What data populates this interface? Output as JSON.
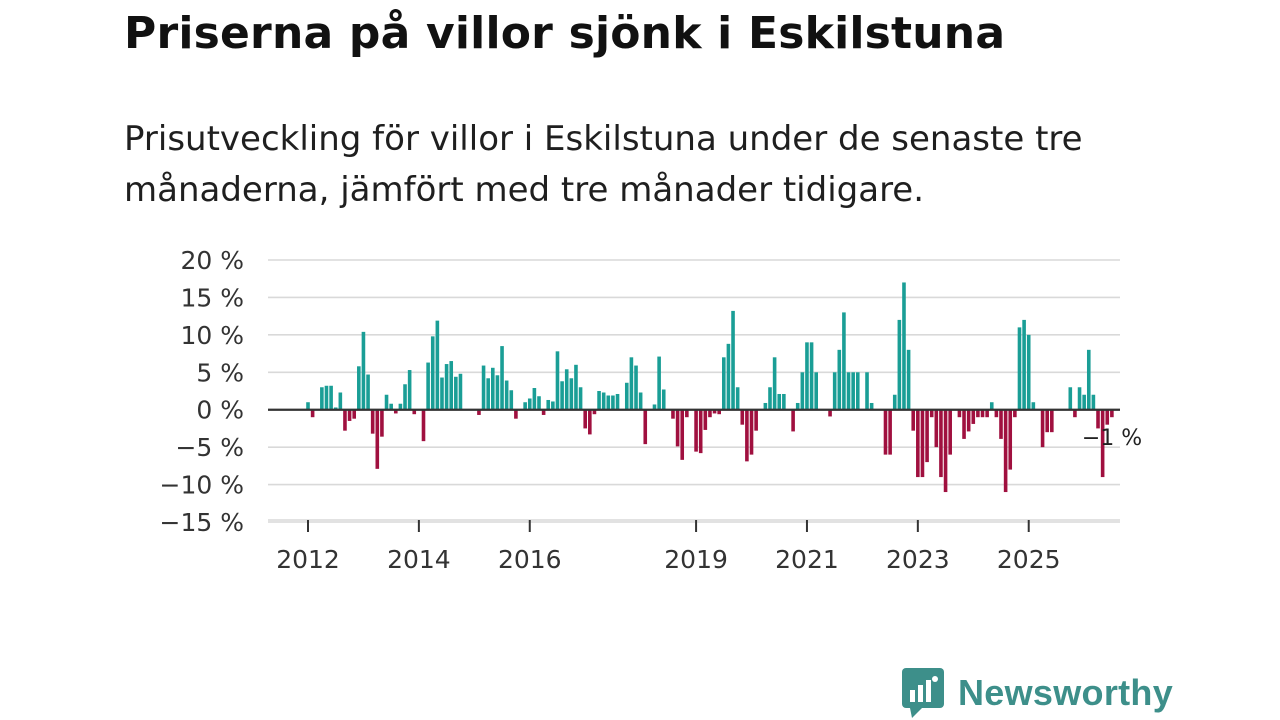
{
  "header": {
    "title": "Priserna på villor sjönk i Eskilstuna",
    "subtitle": "Prisutveckling för villor i Eskilstuna under de senaste tre månaderna, jämfört med tre månader tidigare."
  },
  "brand": {
    "name": "Newsworthy",
    "icon": "newsworthy-logo-icon",
    "color": "#3d8f8a"
  },
  "colors": {
    "positive": "#1a9e96",
    "negative": "#a0103f",
    "grid": "#d9d9d9",
    "zero": "#333333"
  },
  "chart_data": {
    "type": "bar",
    "title": "Priserna på villor sjönk i Eskilstuna",
    "xlabel": "",
    "ylabel": "",
    "ylim": [
      -15,
      20
    ],
    "yticks": [
      20,
      15,
      10,
      5,
      0,
      -5,
      -10,
      -15
    ],
    "ytick_labels": [
      "20 %",
      "15 %",
      "10 %",
      "5 %",
      "0 %",
      "−5 %",
      "−10 %",
      "−15 %"
    ],
    "xticks": [
      2012,
      2014,
      2016,
      2019,
      2021,
      2023,
      2025
    ],
    "xtick_labels": [
      "2012",
      "2014",
      "2016",
      "2019",
      "2021",
      "2023",
      "2025"
    ],
    "grid": true,
    "annotation": {
      "text": "−1 %",
      "value": -1
    },
    "series": [
      {
        "name": "Prisutveckling",
        "start": "2012-01",
        "frequency": "monthly",
        "values": [
          1,
          -1,
          0,
          3,
          3.2,
          3.2,
          0.3,
          2.3,
          -2.8,
          -1.5,
          -1.2,
          5.8,
          10.4,
          4.7,
          -3.2,
          -7.9,
          -3.6,
          2,
          0.8,
          -0.5,
          0.8,
          3.4,
          5.3,
          -0.6,
          0,
          -4.2,
          6.3,
          9.8,
          11.9,
          4.3,
          6.1,
          6.5,
          4.4,
          4.8,
          0,
          0,
          0,
          -0.7,
          5.9,
          4.2,
          5.6,
          4.6,
          8.5,
          3.9,
          2.6,
          -1.2,
          0,
          1,
          1.5,
          2.9,
          1.8,
          -0.7,
          1.3,
          1.1,
          7.8,
          3.8,
          5.4,
          4.2,
          6,
          3,
          -2.5,
          -3.3,
          -0.6,
          2.5,
          2.3,
          1.9,
          1.9,
          2.1,
          0,
          3.6,
          7,
          5.9,
          2.3,
          -4.6,
          0,
          0.7,
          7.1,
          2.7,
          0,
          -1.2,
          -4.9,
          -6.7,
          -1,
          0,
          -5.6,
          -5.8,
          -2.7,
          -1,
          -0.5,
          -0.6,
          7,
          8.8,
          13.2,
          3,
          -2,
          -6.9,
          -6,
          -2.8,
          0,
          0.9,
          3,
          7,
          2.1,
          2.1,
          0,
          -2.9,
          0.9,
          5,
          9,
          9,
          5,
          0,
          0,
          -0.9,
          5,
          8,
          13,
          5,
          5,
          5,
          0,
          5,
          0.9,
          0,
          0,
          -6,
          -6,
          2,
          12,
          17,
          8,
          -2.8,
          -9,
          -9,
          -7,
          -1,
          -5,
          -9,
          -11,
          -6,
          0,
          -1,
          -3.9,
          -2.9,
          -1.9,
          -1,
          -1,
          -1,
          1,
          -1,
          -3.9,
          -11,
          -8,
          -1,
          11,
          12,
          10,
          1,
          0,
          -5,
          -3,
          -3,
          0,
          0,
          0,
          3,
          -1,
          3,
          2,
          8,
          2,
          -2.5,
          -9,
          -2,
          -1
        ]
      }
    ]
  }
}
